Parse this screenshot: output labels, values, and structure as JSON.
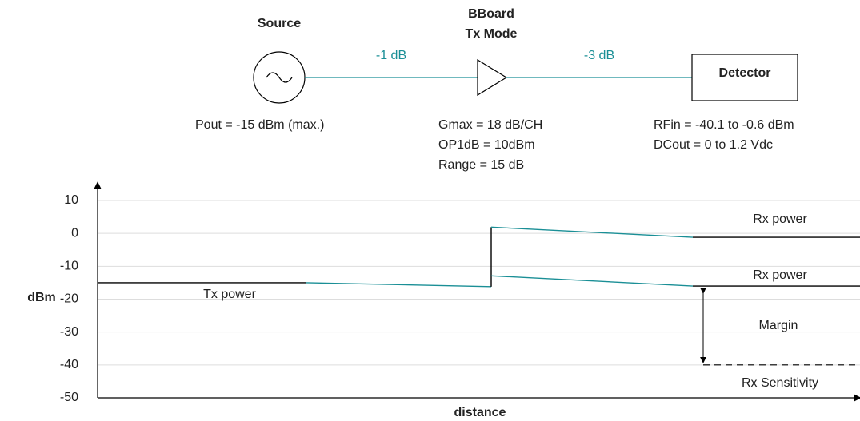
{
  "blocks": {
    "source": {
      "label": "Source",
      "note": "Pout = -15 dBm (max.)"
    },
    "amplifier": {
      "label": [
        "BBoard",
        "Tx Mode"
      ],
      "notes": [
        "Gmax = 18 dB/CH",
        "OP1dB = 10dBm",
        "Range = 15 dB"
      ]
    },
    "detector": {
      "label": "Detector",
      "notes": [
        "RFin = -40.1 to -0.6 dBm",
        "DCout = 0 to 1.2 Vdc"
      ]
    },
    "losses": [
      "-1 dB",
      "-3 dB"
    ]
  },
  "chart": {
    "ylabel": "dBm",
    "xlabel": "distance",
    "ylim": [
      -50,
      10
    ],
    "yticks": [
      10,
      0,
      -10,
      -20,
      -30,
      -40,
      -50
    ],
    "grid": true,
    "segments": [
      {
        "values": [
          -15,
          -15
        ],
        "color": "#000000"
      },
      {
        "values": [
          -15,
          -16.2
        ],
        "color": "#1a8f96"
      },
      {
        "values": [
          -16.2,
          1.9
        ],
        "color": "#000000"
      },
      {
        "values": [
          1.9,
          -1.2
        ],
        "color": "#1a8f96"
      },
      {
        "values": [
          -1.2,
          -1.2
        ],
        "color": "#000000"
      },
      {
        "values": [
          -12.9,
          -16
        ],
        "color": "#1a8f96"
      },
      {
        "values": [
          -16,
          -16
        ],
        "color": "#000000"
      }
    ],
    "margin": [
      -16,
      -40
    ],
    "sensitivity": -40,
    "annotations": [
      "Tx power",
      "Rx power",
      "Rx power",
      "Margin",
      "Rx Sensitivity"
    ]
  }
}
